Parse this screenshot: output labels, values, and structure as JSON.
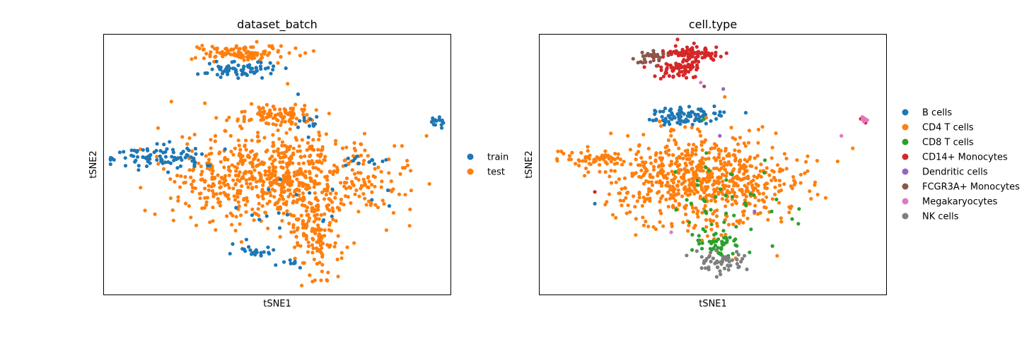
{
  "chart_data": [
    {
      "type": "scatter",
      "title": "dataset_batch",
      "xlabel": "tSNE1",
      "ylabel": "tSNE2",
      "xticks": [],
      "yticks": [],
      "xlim": [
        -50,
        50
      ],
      "ylim": [
        -50,
        50
      ],
      "legend": "right-outside",
      "series": [
        {
          "name": "train",
          "color": "#1f77b4"
        },
        {
          "name": "test",
          "color": "#ff7f0e"
        }
      ],
      "clusters": [
        {
          "series": "test",
          "cx": 0.0,
          "cy": -5.0,
          "sx": 13.0,
          "sy": 9.0,
          "n": 620
        },
        {
          "series": "test",
          "cx": 12.0,
          "cy": -28.0,
          "sx": 4.0,
          "sy": 8.0,
          "n": 110
        },
        {
          "series": "test",
          "cx": -9.0,
          "cy": 43.0,
          "sx": 8.0,
          "sy": 1.6,
          "n": 110
        },
        {
          "series": "test",
          "cx": 0.0,
          "cy": 19.0,
          "sx": 5.0,
          "sy": 2.0,
          "n": 90
        },
        {
          "series": "test",
          "cx": -20.0,
          "cy": -8.0,
          "sx": 5.0,
          "sy": 5.0,
          "n": 55
        },
        {
          "series": "test",
          "cx": 23.0,
          "cy": -9.0,
          "sx": 8.0,
          "sy": 6.0,
          "n": 70
        },
        {
          "series": "train",
          "cx": -33.0,
          "cy": 3.0,
          "sx": 7.0,
          "sy": 2.2,
          "n": 90
        },
        {
          "series": "train",
          "cx": -11.0,
          "cy": 36.5,
          "sx": 5.0,
          "sy": 1.6,
          "n": 70
        },
        {
          "series": "train",
          "cx": 46.0,
          "cy": 16.5,
          "sx": 1.1,
          "sy": 1.0,
          "n": 16
        },
        {
          "series": "train",
          "cx": -5.0,
          "cy": -33.0,
          "sx": 5.0,
          "sy": 1.6,
          "n": 22
        },
        {
          "series": "train",
          "cx": 25.0,
          "cy": 1.0,
          "sx": 3.5,
          "sy": 1.6,
          "n": 12
        },
        {
          "series": "train",
          "cx": 8.0,
          "cy": 17.0,
          "sx": 2.0,
          "sy": 1.3,
          "n": 10
        },
        {
          "series": "train",
          "cx": 2.0,
          "cy": -16.0,
          "sx": 10.0,
          "sy": 5.0,
          "n": 18
        },
        {
          "series": "train",
          "cx": 4.0,
          "cy": -38.0,
          "sx": 2.0,
          "sy": 1.2,
          "n": 8
        }
      ],
      "singletons": [
        {
          "series": "test",
          "x": 43.0,
          "y": 11.0
        },
        {
          "series": "test",
          "x": 3.0,
          "y": 31.0
        },
        {
          "series": "train",
          "x": -2.0,
          "y": 39.0
        },
        {
          "series": "train",
          "x": 6.0,
          "y": 27.0
        },
        {
          "series": "train",
          "x": 9.0,
          "y": 10.5
        }
      ]
    },
    {
      "type": "scatter",
      "title": "cell.type",
      "xlabel": "tSNE1",
      "ylabel": "tSNE2",
      "xticks": [],
      "yticks": [],
      "xlim": [
        -50,
        50
      ],
      "ylim": [
        -50,
        50
      ],
      "legend": "right-outside",
      "series": [
        {
          "name": "B cells",
          "color": "#1f77b4"
        },
        {
          "name": "CD4 T cells",
          "color": "#ff7f0e"
        },
        {
          "name": "CD8 T cells",
          "color": "#2ca02c"
        },
        {
          "name": "CD14+ Monocytes",
          "color": "#d62728"
        },
        {
          "name": "Dendritic cells",
          "color": "#9467bd"
        },
        {
          "name": "FCGR3A+ Monocytes",
          "color": "#8c564b"
        },
        {
          "name": "Megakaryocytes",
          "color": "#e377c2"
        },
        {
          "name": "NK cells",
          "color": "#7f7f7f"
        }
      ],
      "clusters": [
        {
          "series": "CD4 T cells",
          "cx": -5.0,
          "cy": -5.0,
          "sx": 12.0,
          "sy": 9.0,
          "n": 620
        },
        {
          "series": "CD4 T cells",
          "cx": -35.0,
          "cy": 2.0,
          "sx": 5.0,
          "sy": 2.0,
          "n": 60
        },
        {
          "series": "CD4 T cells",
          "cx": 15.0,
          "cy": -8.0,
          "sx": 8.0,
          "sy": 7.0,
          "n": 80
        },
        {
          "series": "B cells",
          "cx": -8.0,
          "cy": 19.0,
          "sx": 5.0,
          "sy": 2.0,
          "n": 90
        },
        {
          "series": "CD14+ Monocytes",
          "cx": -6.0,
          "cy": 43.0,
          "sx": 4.0,
          "sy": 1.6,
          "n": 90
        },
        {
          "series": "CD14+ Monocytes",
          "cx": -10.0,
          "cy": 36.5,
          "sx": 4.0,
          "sy": 1.6,
          "n": 70
        },
        {
          "series": "FCGR3A+ Monocytes",
          "cx": -17.0,
          "cy": 41.0,
          "sx": 2.5,
          "sy": 1.6,
          "n": 30
        },
        {
          "series": "CD8 T cells",
          "cx": 2.0,
          "cy": -31.0,
          "sx": 4.0,
          "sy": 2.5,
          "n": 45
        },
        {
          "series": "CD8 T cells",
          "cx": 3.0,
          "cy": -13.0,
          "sx": 9.0,
          "sy": 9.0,
          "n": 45
        },
        {
          "series": "NK cells",
          "cx": 2.0,
          "cy": -37.0,
          "sx": 4.0,
          "sy": 2.2,
          "n": 55
        },
        {
          "series": "CD14+ Monocytes",
          "cx": 43.0,
          "cy": 17.0,
          "sx": 0.6,
          "sy": 0.6,
          "n": 3
        },
        {
          "series": "Megakaryocytes",
          "cx": 43.5,
          "cy": 17.5,
          "sx": 0.7,
          "sy": 0.6,
          "n": 8
        }
      ],
      "singletons": [
        {
          "series": "Megakaryocytes",
          "x": 37.0,
          "y": 11.0
        },
        {
          "series": "Megakaryocytes",
          "x": -3.5,
          "y": 31.5
        },
        {
          "series": "FCGR3A+ Monocytes",
          "x": -2.5,
          "y": 30.0
        },
        {
          "series": "Dendritic cells",
          "x": 3.0,
          "y": 29.0
        },
        {
          "series": "Dendritic cells",
          "x": 2.0,
          "y": 11.0
        },
        {
          "series": "B cells",
          "x": -34.0,
          "y": -15.0
        },
        {
          "series": "CD14+ Monocytes",
          "x": -34.0,
          "y": -10.5
        },
        {
          "series": "Megakaryocytes",
          "x": -12.0,
          "y": -26.0
        },
        {
          "series": "Dendritic cells",
          "x": 12.0,
          "y": -18.0
        }
      ]
    }
  ]
}
